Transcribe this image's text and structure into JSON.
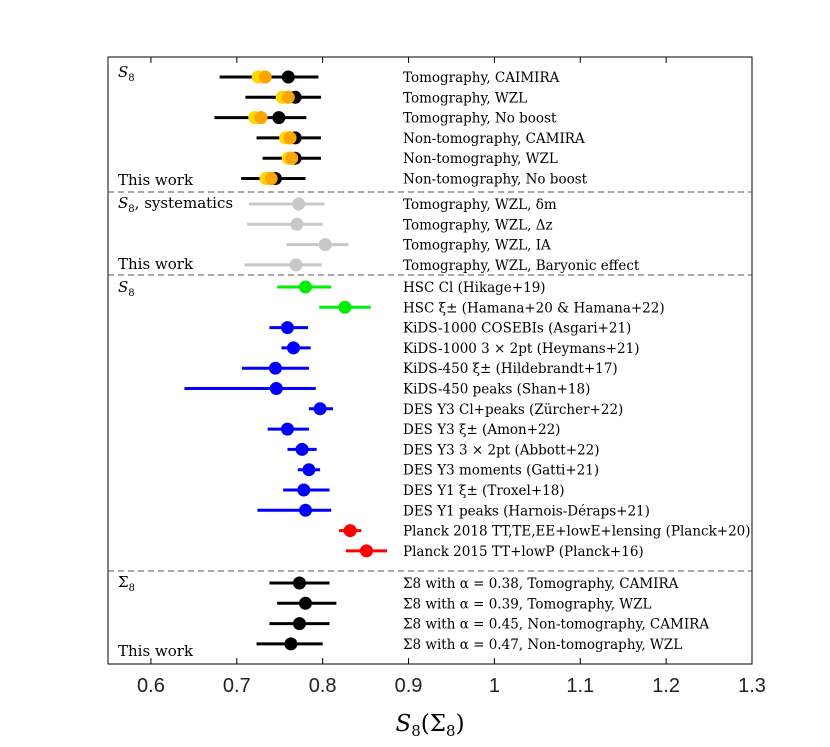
{
  "chart_data": {
    "type": "forest",
    "x_axis": {
      "label": "S8(Σ8)",
      "label_main": "S",
      "label_sub": "8",
      "label_paren_open": "(Σ",
      "label_paren_sub": "8",
      "label_paren_close": ")",
      "range": [
        0.55,
        1.3
      ],
      "ticks": [
        0.6,
        0.7,
        0.8,
        0.9,
        1.0,
        1.1,
        1.2,
        1.3
      ],
      "tick_labels": [
        "0.6",
        "0.7",
        "0.8",
        "0.9",
        "1",
        "1.1",
        "1.2",
        "1.3"
      ]
    },
    "panels": [
      {
        "title": "S8",
        "title_main": "S",
        "title_sub": "8",
        "title_rest": "",
        "footer": "This work",
        "rows": [
          {
            "label": "Tomography, CAIMIRA",
            "points": [
              {
                "value": 0.76,
                "err_lo": 0.08,
                "err_hi": 0.035,
                "color": "#000000"
              },
              {
                "value": 0.733,
                "color": "#ffa500"
              },
              {
                "value": 0.725,
                "color": "#ffd700"
              }
            ]
          },
          {
            "label": "Tomography, WZL",
            "points": [
              {
                "value": 0.768,
                "err_lo": 0.058,
                "err_hi": 0.03,
                "color": "#000000"
              },
              {
                "value": 0.76,
                "color": "#ffa500"
              },
              {
                "value": 0.753,
                "color": "#ffd700"
              }
            ]
          },
          {
            "label": "Tomography, No boost",
            "points": [
              {
                "value": 0.749,
                "err_lo": 0.075,
                "err_hi": 0.032,
                "color": "#000000"
              },
              {
                "value": 0.728,
                "color": "#ffa500"
              },
              {
                "value": 0.721,
                "color": "#ffd700"
              }
            ]
          },
          {
            "label": "Non-tomography, CAMIRA",
            "points": [
              {
                "value": 0.768,
                "err_lo": 0.045,
                "err_hi": 0.03,
                "color": "#000000"
              },
              {
                "value": 0.762,
                "color": "#ffa500"
              },
              {
                "value": 0.757,
                "color": "#ffd700"
              }
            ]
          },
          {
            "label": "Non-tomography, WZL",
            "points": [
              {
                "value": 0.768,
                "err_lo": 0.038,
                "err_hi": 0.03,
                "color": "#000000"
              },
              {
                "value": 0.764,
                "color": "#ffa500"
              },
              {
                "value": 0.76,
                "color": "#ffd700"
              }
            ]
          },
          {
            "label": "Non-tomography, No boost",
            "points": [
              {
                "value": 0.745,
                "err_lo": 0.04,
                "err_hi": 0.035,
                "color": "#000000"
              },
              {
                "value": 0.74,
                "color": "#ffa500"
              },
              {
                "value": 0.734,
                "color": "#ffd700"
              }
            ]
          }
        ]
      },
      {
        "title": "S8, systematics",
        "title_main": "S",
        "title_sub": "8",
        "title_rest": ", systematics",
        "footer": "This work",
        "rows": [
          {
            "label": "Tomography, WZL, δm",
            "points": [
              {
                "value": 0.772,
                "err_lo": 0.058,
                "err_hi": 0.03,
                "color": "#c8c8c8"
              }
            ]
          },
          {
            "label": "Tomography, WZL, Δz",
            "points": [
              {
                "value": 0.77,
                "err_lo": 0.058,
                "err_hi": 0.03,
                "color": "#c8c8c8"
              }
            ]
          },
          {
            "label": "Tomography, WZL, IA",
            "points": [
              {
                "value": 0.803,
                "err_lo": 0.045,
                "err_hi": 0.027,
                "color": "#c8c8c8"
              }
            ]
          },
          {
            "label": "Tomography, WZL, Baryonic effect",
            "points": [
              {
                "value": 0.769,
                "err_lo": 0.06,
                "err_hi": 0.03,
                "color": "#c8c8c8"
              }
            ]
          }
        ]
      },
      {
        "title": "S8",
        "title_main": "S",
        "title_sub": "8",
        "title_rest": "",
        "footer": "",
        "rows": [
          {
            "label": "HSC Cl (Hikage+19)",
            "points": [
              {
                "value": 0.78,
                "err_lo": 0.033,
                "err_hi": 0.03,
                "color": "#00ee00"
              }
            ]
          },
          {
            "label": "HSC ξ± (Hamana+20 & Hamana+22)",
            "points": [
              {
                "value": 0.826,
                "err_lo": 0.03,
                "err_hi": 0.03,
                "color": "#00ee00"
              }
            ]
          },
          {
            "label": "KiDS-1000 COSEBIs (Asgari+21)",
            "points": [
              {
                "value": 0.759,
                "err_lo": 0.021,
                "err_hi": 0.024,
                "color": "#0000ff"
              }
            ]
          },
          {
            "label": "KiDS-1000 3 × 2pt (Heymans+21)",
            "points": [
              {
                "value": 0.766,
                "err_lo": 0.014,
                "err_hi": 0.02,
                "color": "#0000ff"
              }
            ]
          },
          {
            "label": "KiDS-450 ξ± (Hildebrandt+17)",
            "points": [
              {
                "value": 0.745,
                "err_lo": 0.039,
                "err_hi": 0.039,
                "color": "#0000ff"
              }
            ]
          },
          {
            "label": "KiDS-450 peaks (Shan+18)",
            "points": [
              {
                "value": 0.746,
                "err_lo": 0.107,
                "err_hi": 0.046,
                "color": "#0000ff"
              }
            ]
          },
          {
            "label": "DES Y3 Cl+peaks (Zürcher+22)",
            "points": [
              {
                "value": 0.797,
                "err_lo": 0.013,
                "err_hi": 0.015,
                "color": "#0000ff"
              }
            ]
          },
          {
            "label": "DES Y3 ξ± (Amon+22)",
            "points": [
              {
                "value": 0.759,
                "err_lo": 0.023,
                "err_hi": 0.025,
                "color": "#0000ff"
              }
            ]
          },
          {
            "label": "DES Y3 3 × 2pt (Abbott+22)",
            "points": [
              {
                "value": 0.776,
                "err_lo": 0.017,
                "err_hi": 0.017,
                "color": "#0000ff"
              }
            ]
          },
          {
            "label": "DES Y3 moments (Gatti+21)",
            "points": [
              {
                "value": 0.784,
                "err_lo": 0.013,
                "err_hi": 0.013,
                "color": "#0000ff"
              }
            ]
          },
          {
            "label": "DES Y1 ξ± (Troxel+18)",
            "points": [
              {
                "value": 0.778,
                "err_lo": 0.024,
                "err_hi": 0.03,
                "color": "#0000ff"
              }
            ]
          },
          {
            "label": "DES Y1 peaks (Harnois-Déraps+21)",
            "points": [
              {
                "value": 0.78,
                "err_lo": 0.056,
                "err_hi": 0.03,
                "color": "#0000ff"
              }
            ]
          },
          {
            "label": "Planck 2018 TT,TE,EE+lowE+lensing (Planck+20)",
            "points": [
              {
                "value": 0.832,
                "err_lo": 0.013,
                "err_hi": 0.013,
                "color": "#ff0000"
              }
            ]
          },
          {
            "label": "Planck 2015 TT+lowP (Planck+16)",
            "points": [
              {
                "value": 0.851,
                "err_lo": 0.024,
                "err_hi": 0.024,
                "color": "#ff0000"
              }
            ]
          }
        ]
      },
      {
        "title": "Σ8",
        "title_main": "Σ",
        "title_sub": "8",
        "title_rest": "",
        "footer": "This work",
        "rows": [
          {
            "label": "Σ8 with α = 0.38, Tomography, CAMIRA",
            "points": [
              {
                "value": 0.773,
                "err_lo": 0.035,
                "err_hi": 0.035,
                "color": "#000000"
              }
            ]
          },
          {
            "label": "Σ8 with α = 0.39, Tomography, WZL",
            "points": [
              {
                "value": 0.78,
                "err_lo": 0.033,
                "err_hi": 0.036,
                "color": "#000000"
              }
            ]
          },
          {
            "label": "Σ8 with α = 0.45, Non-tomography, CAMIRA",
            "points": [
              {
                "value": 0.773,
                "err_lo": 0.035,
                "err_hi": 0.035,
                "color": "#000000"
              }
            ]
          },
          {
            "label": "Σ8 with α = 0.47, Non-tomography, WZL",
            "points": [
              {
                "value": 0.763,
                "err_lo": 0.04,
                "err_hi": 0.037,
                "color": "#000000"
              }
            ]
          }
        ]
      }
    ]
  }
}
